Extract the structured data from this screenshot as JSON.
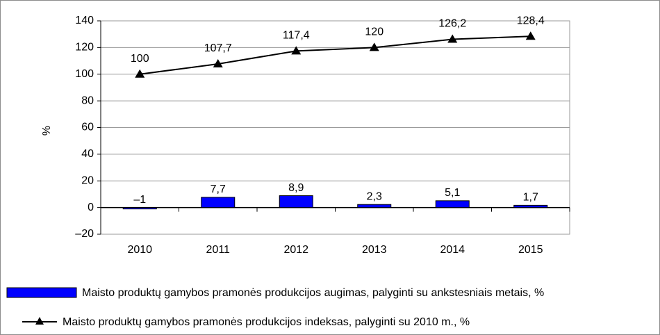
{
  "chart_data": {
    "type": "bar",
    "categories": [
      "2010",
      "2011",
      "2012",
      "2013",
      "2014",
      "2015"
    ],
    "y_label": "%",
    "ylim": [
      -20,
      140
    ],
    "yticks": [
      {
        "value": -20,
        "label": "–20"
      },
      0,
      20,
      40,
      60,
      80,
      100,
      120,
      140
    ],
    "grid": true,
    "legend": "bottom",
    "series": [
      {
        "name": "Maisto produktų gamybos pramonės produkcijos augimas, palyginti su ankstesniais metais, %",
        "type": "bar",
        "color": "#0000ff",
        "values": [
          -1,
          7.7,
          8.9,
          2.3,
          5.1,
          1.7
        ],
        "value_labels": [
          "–1",
          "7,7",
          "8,9",
          "2,3",
          "5,1",
          "1,7"
        ]
      },
      {
        "name": "Maisto produktų gamybos pramonės produkcijos indeksas, palyginti su 2010 m., %",
        "type": "line",
        "color": "#000000",
        "values": [
          100,
          107.7,
          117.4,
          120,
          126.2,
          128.4
        ],
        "value_labels": [
          "100",
          "107,7",
          "117,4",
          "120",
          "126,2",
          "128,4"
        ]
      }
    ]
  }
}
